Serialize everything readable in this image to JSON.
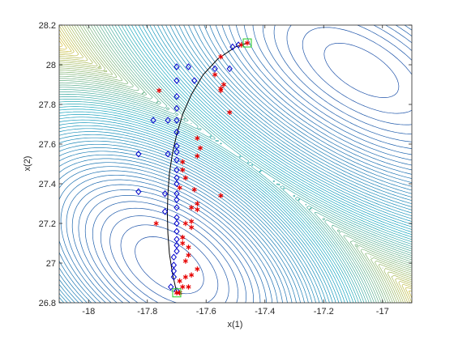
{
  "chart_data": {
    "type": "scatter",
    "title": "",
    "xlabel": "x(1)",
    "ylabel": "x(2)",
    "xlim": [
      -18.1,
      -16.9
    ],
    "ylim": [
      26.8,
      28.2
    ],
    "grid": false,
    "legend": "none",
    "x_ticks": [
      -18,
      -17.8,
      -17.6,
      -17.4,
      -17.2,
      -17
    ],
    "y_ticks": [
      26.8,
      27,
      27.2,
      27.4,
      27.6,
      27.8,
      28,
      28.2
    ],
    "x_tick_labels": [
      "-18",
      "-17.8",
      "-17.6",
      "-17.4",
      "-17.2",
      "-17"
    ],
    "y_tick_labels": [
      "26.8",
      "27",
      "27.2",
      "27.4",
      "27.6",
      "27.8",
      "28",
      "28.2"
    ],
    "background": "contour",
    "colors": {
      "diamond": "#0000cc",
      "star": "#e60000",
      "curve": "#000000",
      "endpoint_box": "#22cc22",
      "contour_low": "#1f4fa8",
      "contour_mid": "#18a8c0",
      "contour_high": "#e0c030"
    },
    "series": [
      {
        "marker": "diamond",
        "points": [
          [
            -17.66,
            27.99
          ],
          [
            -17.64,
            27.92
          ],
          [
            -17.7,
            27.99
          ],
          [
            -17.7,
            27.92
          ],
          [
            -17.7,
            27.84
          ],
          [
            -17.7,
            27.78
          ],
          [
            -17.7,
            27.72
          ],
          [
            -17.7,
            27.66
          ],
          [
            -17.73,
            27.72
          ],
          [
            -17.7,
            27.59
          ],
          [
            -17.7,
            27.56
          ],
          [
            -17.7,
            27.52
          ],
          [
            -17.73,
            27.55
          ],
          [
            -17.7,
            27.47
          ],
          [
            -17.7,
            27.43
          ],
          [
            -17.7,
            27.4
          ],
          [
            -17.7,
            27.35
          ],
          [
            -17.74,
            27.35
          ],
          [
            -17.7,
            27.32
          ],
          [
            -17.7,
            27.28
          ],
          [
            -17.74,
            27.26
          ],
          [
            -17.7,
            27.23
          ],
          [
            -17.7,
            27.2
          ],
          [
            -17.7,
            27.16
          ],
          [
            -17.7,
            27.12
          ],
          [
            -17.7,
            27.09
          ],
          [
            -17.7,
            27.06
          ],
          [
            -17.71,
            27.03
          ],
          [
            -17.71,
            26.99
          ],
          [
            -17.71,
            26.96
          ],
          [
            -17.71,
            26.93
          ],
          [
            -17.72,
            26.88
          ],
          [
            -17.7,
            26.86
          ],
          [
            -17.83,
            27.55
          ],
          [
            -17.83,
            27.36
          ],
          [
            -17.78,
            27.72
          ],
          [
            -17.57,
            27.98
          ],
          [
            -17.52,
            27.98
          ],
          [
            -17.51,
            28.09
          ],
          [
            -17.49,
            28.1
          ]
        ]
      },
      {
        "marker": "star",
        "points": [
          [
            -17.46,
            28.11
          ],
          [
            -17.48,
            28.1
          ],
          [
            -17.55,
            28.04
          ],
          [
            -17.57,
            27.95
          ],
          [
            -17.54,
            27.9
          ],
          [
            -17.55,
            27.87
          ],
          [
            -17.52,
            27.76
          ],
          [
            -17.76,
            27.87
          ],
          [
            -17.63,
            27.63
          ],
          [
            -17.62,
            27.58
          ],
          [
            -17.63,
            27.54
          ],
          [
            -17.68,
            27.51
          ],
          [
            -17.68,
            27.47
          ],
          [
            -17.67,
            27.43
          ],
          [
            -17.69,
            27.38
          ],
          [
            -17.64,
            27.37
          ],
          [
            -17.65,
            27.28
          ],
          [
            -17.63,
            27.3
          ],
          [
            -17.63,
            27.27
          ],
          [
            -17.55,
            27.34
          ],
          [
            -17.65,
            27.21
          ],
          [
            -17.67,
            27.2
          ],
          [
            -17.65,
            27.18
          ],
          [
            -17.77,
            27.2
          ],
          [
            -17.68,
            27.13
          ],
          [
            -17.68,
            27.1
          ],
          [
            -17.66,
            27.08
          ],
          [
            -17.66,
            27.04
          ],
          [
            -17.67,
            27.01
          ],
          [
            -17.63,
            26.97
          ],
          [
            -17.65,
            26.94
          ],
          [
            -17.67,
            26.93
          ],
          [
            -17.69,
            26.91
          ],
          [
            -17.68,
            26.88
          ],
          [
            -17.66,
            26.88
          ],
          [
            -17.69,
            26.85
          ],
          [
            -17.7,
            26.85
          ],
          [
            -17.55,
            27.88
          ]
        ]
      },
      {
        "marker": "line",
        "points": [
          [
            -17.7,
            26.85
          ],
          [
            -17.715,
            26.95
          ],
          [
            -17.725,
            27.05
          ],
          [
            -17.73,
            27.15
          ],
          [
            -17.732,
            27.25
          ],
          [
            -17.73,
            27.35
          ],
          [
            -17.725,
            27.45
          ],
          [
            -17.715,
            27.55
          ],
          [
            -17.7,
            27.65
          ],
          [
            -17.68,
            27.75
          ],
          [
            -17.65,
            27.85
          ],
          [
            -17.61,
            27.95
          ],
          [
            -17.56,
            28.03
          ],
          [
            -17.5,
            28.09
          ],
          [
            -17.46,
            28.11
          ]
        ]
      },
      {
        "marker": "square",
        "points": [
          [
            -17.7,
            26.85
          ],
          [
            -17.46,
            28.11
          ]
        ]
      }
    ]
  }
}
